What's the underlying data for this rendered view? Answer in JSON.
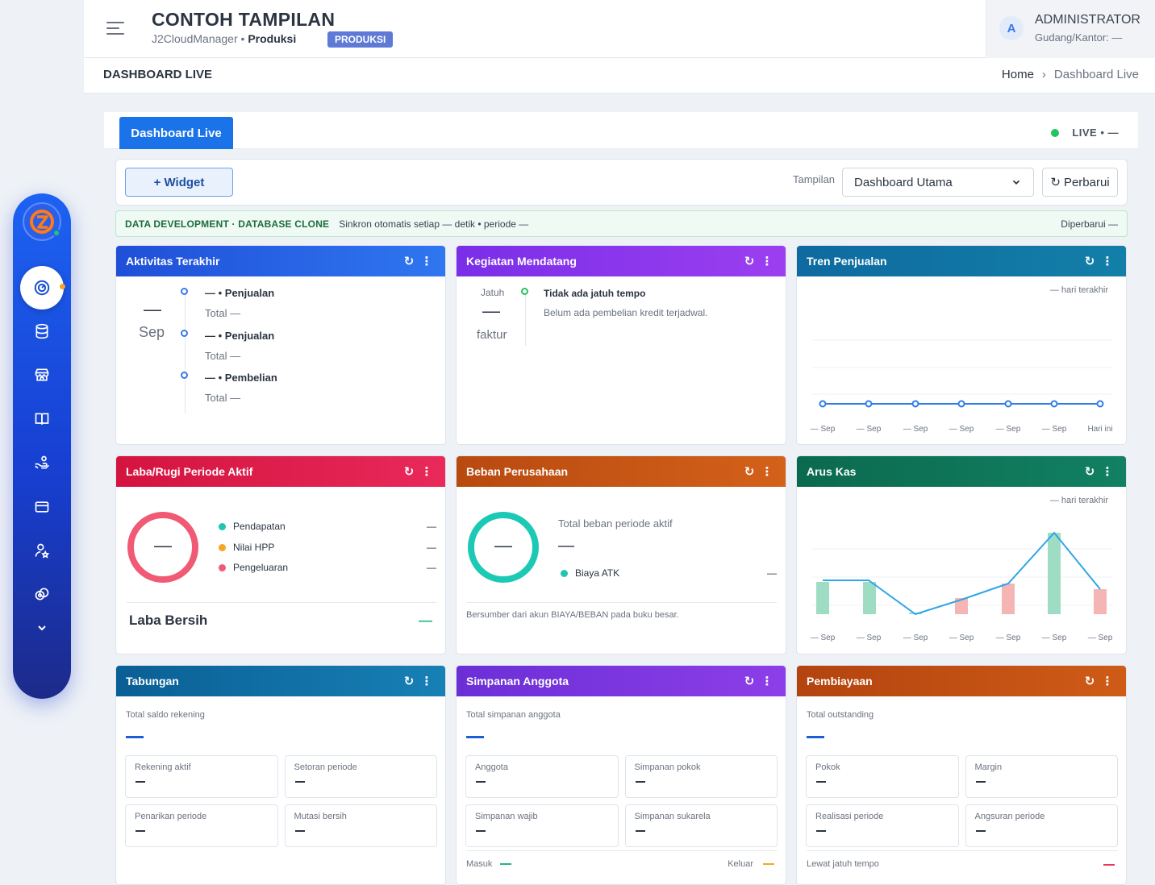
{
  "header": {
    "app_title": "CONTOH TAMPILAN",
    "app_sub": "J2CloudManager",
    "app_env": "Produksi",
    "env_badge": "PRODUKSI",
    "user_initial": "A",
    "user_name": "ADMINISTRATOR",
    "user_sub": "Gudang/Kantor: —"
  },
  "page": {
    "title": "DASHBOARD LIVE",
    "breadcrumb_home": "Home",
    "breadcrumb_sep": "›",
    "breadcrumb_current": "Dashboard Live"
  },
  "tabs": {
    "active": "Dashboard Live",
    "live_label": "LIVE • —"
  },
  "toolbar": {
    "widget_button": "+ Widget",
    "view_label": "Tampilan",
    "view_selected": "Dashboard Utama",
    "refresh_button": "Perbarui"
  },
  "devbar": {
    "label": "DATA DEVELOPMENT · DATABASE CLONE",
    "sync": "Sinkron otomatis setiap — detik • periode —",
    "updated": "Diperbarui —"
  },
  "cards": {
    "aktivitas": {
      "title": "Aktivitas Terakhir",
      "date_day": "—",
      "date_month": "Sep",
      "items": [
        {
          "title": "— • Penjualan",
          "sub": "Total —"
        },
        {
          "title": "— • Penjualan",
          "sub": "Total —"
        },
        {
          "title": "— • Pembelian",
          "sub": "Total —"
        }
      ]
    },
    "kegiatan": {
      "title": "Kegiatan Mendatang",
      "col_label": "Jatuh",
      "col_value": "—",
      "col_unit": "faktur",
      "item_title": "Tidak ada jatuh tempo",
      "item_sub": "Belum ada pembelian kredit terjadwal."
    },
    "tren": {
      "title": "Tren Penjualan",
      "range": "— hari terakhir",
      "xlabels": [
        "— Sep",
        "— Sep",
        "— Sep",
        "— Sep",
        "— Sep",
        "— Sep",
        "Hari ini"
      ]
    },
    "labarugi": {
      "title": "Laba/Rugi Periode Aktif",
      "donut_value": "—",
      "legend": [
        {
          "label": "Pendapatan",
          "value": "—",
          "color": "#20c4b0"
        },
        {
          "label": "Nilai HPP",
          "value": "—",
          "color": "#f5a623"
        },
        {
          "label": "Pengeluaran",
          "value": "—",
          "color": "#ef5a78"
        }
      ],
      "net_label": "Laba Bersih",
      "net_value": "—"
    },
    "beban": {
      "title": "Beban Perusahaan",
      "donut_value": "—",
      "total_label": "Total beban periode aktif",
      "total_value": "—",
      "legend_label": "Biaya ATK",
      "legend_value": "—",
      "footnote": "Bersumber dari akun BIAYA/BEBAN pada buku besar."
    },
    "aruskas": {
      "title": "Arus Kas",
      "range": "— hari terakhir",
      "xlabels": [
        "— Sep",
        "— Sep",
        "— Sep",
        "— Sep",
        "— Sep",
        "— Sep",
        "— Sep"
      ]
    },
    "tabungan": {
      "title": "Tabungan",
      "total_label": "Total saldo rekening",
      "stats": [
        {
          "label": "Rekening aktif",
          "value": "—"
        },
        {
          "label": "Setoran periode",
          "value": "—"
        },
        {
          "label": "Penarikan periode",
          "value": "—"
        },
        {
          "label": "Mutasi bersih",
          "value": "—"
        }
      ]
    },
    "simpanan": {
      "title": "Simpanan Anggota",
      "total_label": "Total simpanan anggota",
      "stats": [
        {
          "label": "Anggota",
          "value": "—"
        },
        {
          "label": "Simpanan pokok",
          "value": "—"
        },
        {
          "label": "Simpanan wajib",
          "value": "—"
        },
        {
          "label": "Simpanan sukarela",
          "value": "—"
        }
      ],
      "masuk": "Masuk",
      "keluar": "Keluar"
    },
    "pembiayaan": {
      "title": "Pembiayaan",
      "total_label": "Total outstanding",
      "stats": [
        {
          "label": "Pokok",
          "value": "—"
        },
        {
          "label": "Margin",
          "value": "—"
        },
        {
          "label": "Realisasi periode",
          "value": "—"
        },
        {
          "label": "Angsuran periode",
          "value": "—"
        }
      ],
      "overdue": "Lewat jatuh tempo"
    }
  },
  "icons": {
    "refresh": "↻",
    "more": "⋮",
    "sidebar": [
      "dashboard-icon",
      "database-icon",
      "store-icon",
      "book-icon",
      "hand-coins-icon",
      "wallet-icon",
      "user-star-icon",
      "coins-icon",
      "chevron-down-icon"
    ]
  }
}
